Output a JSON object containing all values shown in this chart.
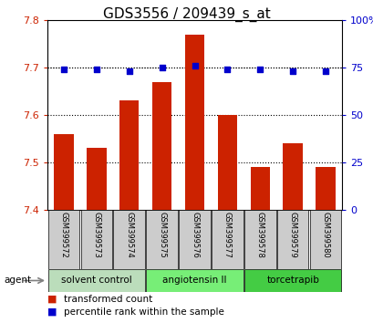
{
  "title": "GDS3556 / 209439_s_at",
  "samples": [
    "GSM399572",
    "GSM399573",
    "GSM399574",
    "GSM399575",
    "GSM399576",
    "GSM399577",
    "GSM399578",
    "GSM399579",
    "GSM399580"
  ],
  "bar_values": [
    7.56,
    7.53,
    7.63,
    7.67,
    7.77,
    7.6,
    7.49,
    7.54,
    7.49
  ],
  "percentile_values": [
    74,
    74,
    73,
    75,
    76,
    74,
    74,
    73,
    73
  ],
  "bar_bottom": 7.4,
  "ylim_left": [
    7.4,
    7.8
  ],
  "ylim_right": [
    0,
    100
  ],
  "yticks_left": [
    7.4,
    7.5,
    7.6,
    7.7,
    7.8
  ],
  "yticks_right": [
    0,
    25,
    50,
    75,
    100
  ],
  "bar_color": "#cc2200",
  "dot_color": "#0000cc",
  "agent_groups": [
    {
      "label": "solvent control",
      "start": 0,
      "end": 3,
      "color": "#bbddbb"
    },
    {
      "label": "angiotensin II",
      "start": 3,
      "end": 6,
      "color": "#77ee77"
    },
    {
      "label": "torcetrapib",
      "start": 6,
      "end": 9,
      "color": "#44cc44"
    }
  ],
  "agent_label": "agent",
  "legend_bar_label": "transformed count",
  "legend_dot_label": "percentile rank within the sample",
  "background_color": "#ffffff",
  "plot_bg_color": "#ffffff",
  "tick_label_color_left": "#cc2200",
  "tick_label_color_right": "#0000cc",
  "sample_box_color": "#cccccc",
  "title_fontsize": 11,
  "axis_fontsize": 8,
  "legend_fontsize": 7.5
}
